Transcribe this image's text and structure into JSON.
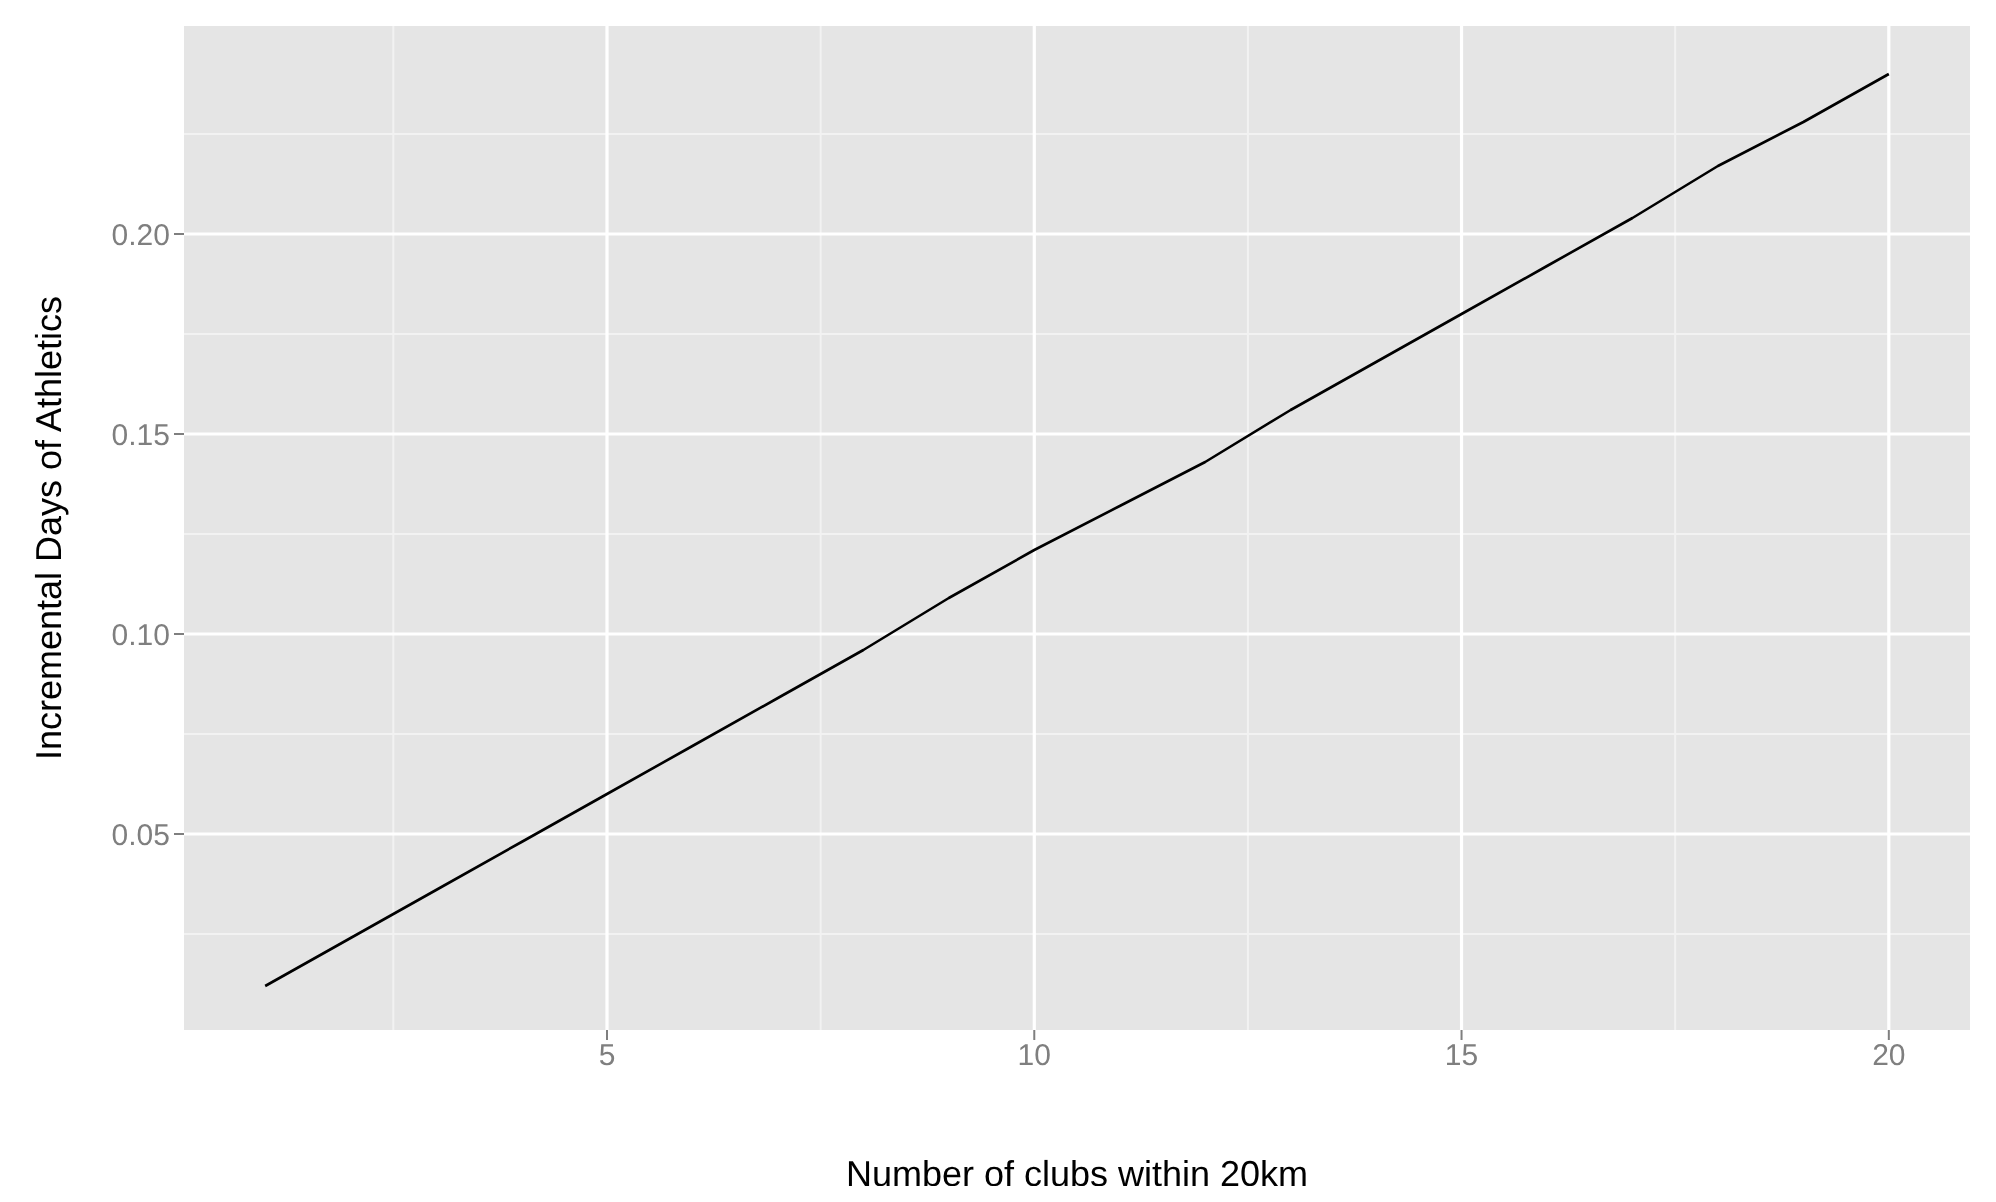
{
  "chart_data": {
    "type": "line",
    "xlabel": "Number of clubs within 20km",
    "ylabel": "Incremental Days of Athletics",
    "x": [
      1,
      2,
      3,
      4,
      5,
      6,
      7,
      8,
      9,
      10,
      11,
      12,
      13,
      14,
      15,
      16,
      17,
      18,
      19,
      20
    ],
    "series": [
      {
        "color": "#000000",
        "values": [
          0.012,
          0.024,
          0.036,
          0.048,
          0.06,
          0.072,
          0.084,
          0.096,
          0.109,
          0.121,
          0.132,
          0.143,
          0.156,
          0.168,
          0.18,
          0.192,
          0.204,
          0.217,
          0.228,
          0.24
        ]
      }
    ],
    "xlim": [
      0.05,
      20.95
    ],
    "xticks": [
      5,
      10,
      15,
      20
    ],
    "ylim": [
      0.001,
      0.252
    ],
    "yticks": [
      0.05,
      {
        "value": 0.1,
        "label": "0.10"
      },
      0.15,
      {
        "value": 0.2,
        "label": "0.20"
      }
    ],
    "grid": true,
    "marker": "none",
    "line_style": "solid",
    "legend": false
  }
}
